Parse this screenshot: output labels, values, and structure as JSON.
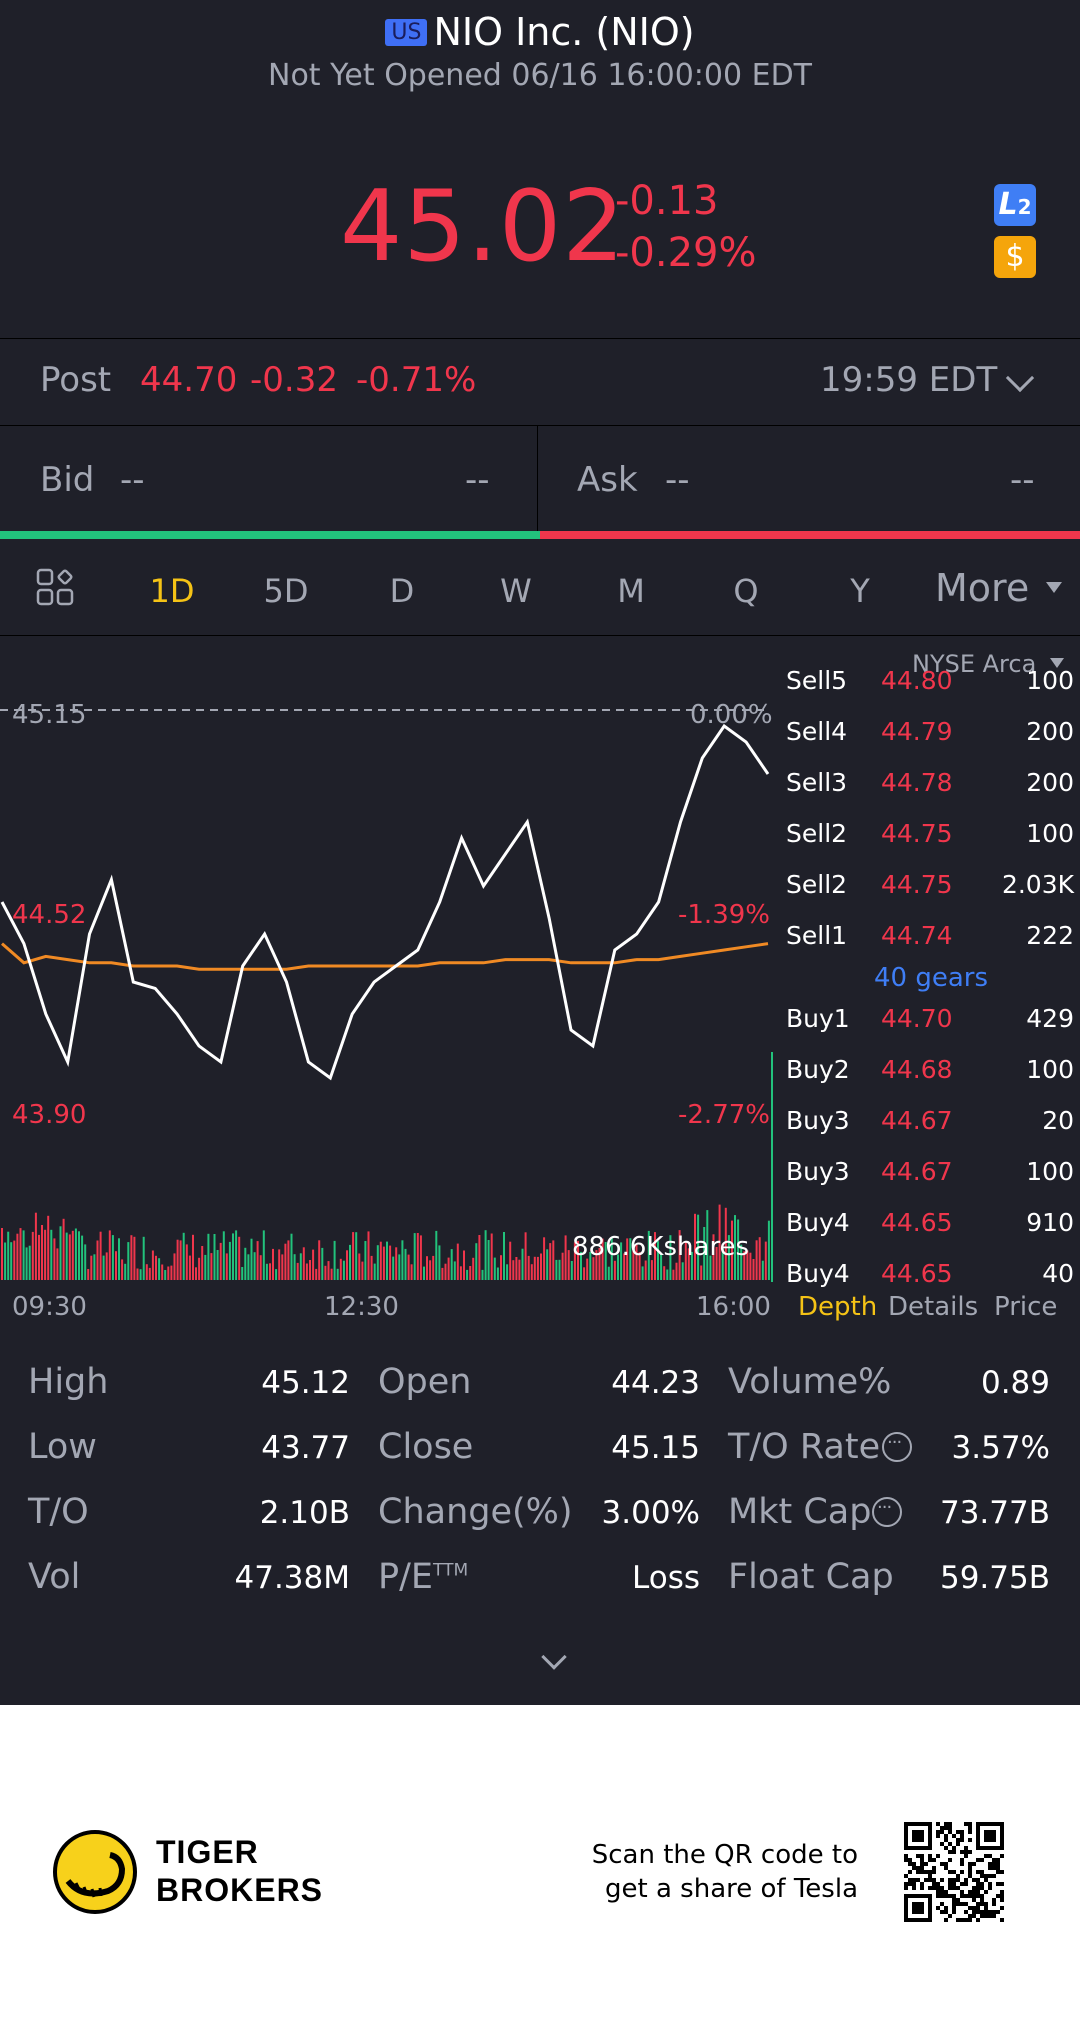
{
  "header": {
    "market_badge": "US",
    "title": "NIO Inc. (NIO)",
    "status": "Not Yet Opened 06/16 16:00:00 EDT",
    "price": "45.02",
    "change": "-0.13",
    "change_pct": "-0.29%",
    "l2_badge": "L2",
    "dollar_badge": "$"
  },
  "post": {
    "label": "Post",
    "price": "44.70",
    "change": "-0.32",
    "change_pct": "-0.71%",
    "time": "19:59 EDT"
  },
  "quote": {
    "bid_label": "Bid",
    "bid_value": "--",
    "bid_size": "--",
    "ask_label": "Ask",
    "ask_value": "--",
    "ask_size": "--"
  },
  "tabs": [
    "1D",
    "5D",
    "D",
    "W",
    "M",
    "Q",
    "Y"
  ],
  "active_tab": "1D",
  "more_label": "More",
  "chart": {
    "exchange": "NYSE Arca",
    "prev_close_label": "45.15",
    "prev_close_pct": "0.00%",
    "mid_price_label": "44.52",
    "mid_pct_label": "-1.39%",
    "low_price_label": "43.90",
    "low_pct_label": "-2.77%",
    "volume_label": "886.6Kshares",
    "time_labels": [
      "09:30",
      "12:30",
      "16:00"
    ],
    "colors": {
      "price_line": "#ffffff",
      "avg_line": "#f08a24",
      "up": "#22c27c",
      "down": "#f0364c"
    }
  },
  "chart_data": {
    "type": "line",
    "title": "",
    "xlabel": "",
    "ylabel": "",
    "x_ticks": [
      "09:30",
      "12:30",
      "16:00"
    ],
    "ylim": [
      43.9,
      45.15
    ],
    "y_ticks": [
      "45.15",
      "44.52",
      "43.90"
    ],
    "y_pct_ticks": [
      "0.00%",
      "-1.39%",
      "-2.77%"
    ],
    "series": [
      {
        "values": [
          44.55,
          44.42,
          44.2,
          44.05,
          44.45,
          44.62,
          44.3,
          44.28,
          44.2,
          44.1,
          44.05,
          44.35,
          44.45,
          44.3,
          44.05,
          44.0,
          44.2,
          44.3,
          44.35,
          44.4,
          44.55,
          44.75,
          44.6,
          44.7,
          44.8,
          44.5,
          44.15,
          44.1,
          44.4,
          44.45,
          44.55,
          44.8,
          45.0,
          45.1,
          45.05,
          44.95
        ]
      },
      {
        "values": [
          44.42,
          44.36,
          44.38,
          44.37,
          44.36,
          44.36,
          44.35,
          44.35,
          44.35,
          44.34,
          44.34,
          44.34,
          44.34,
          44.34,
          44.35,
          44.35,
          44.35,
          44.35,
          44.35,
          44.35,
          44.36,
          44.36,
          44.36,
          44.37,
          44.37,
          44.37,
          44.36,
          44.36,
          44.36,
          44.37,
          44.37,
          44.38,
          44.39,
          44.4,
          44.41,
          44.42
        ]
      }
    ]
  },
  "order_book": {
    "rows": [
      {
        "side": "Sell5",
        "price": "44.80",
        "size": "100"
      },
      {
        "side": "Sell4",
        "price": "44.79",
        "size": "200"
      },
      {
        "side": "Sell3",
        "price": "44.78",
        "size": "200"
      },
      {
        "side": "Sell2",
        "price": "44.75",
        "size": "100"
      },
      {
        "side": "Sell2",
        "price": "44.75",
        "size": "2.03K"
      },
      {
        "side": "Sell1",
        "price": "44.74",
        "size": "222"
      }
    ],
    "gears": "40 gears",
    "buy_rows": [
      {
        "side": "Buy1",
        "price": "44.70",
        "size": "429"
      },
      {
        "side": "Buy2",
        "price": "44.68",
        "size": "100"
      },
      {
        "side": "Buy3",
        "price": "44.67",
        "size": "20"
      },
      {
        "side": "Buy3",
        "price": "44.67",
        "size": "100"
      },
      {
        "side": "Buy4",
        "price": "44.65",
        "size": "910"
      },
      {
        "side": "Buy4",
        "price": "44.65",
        "size": "40"
      }
    ],
    "tabs": [
      "Depth",
      "Details",
      "Price"
    ],
    "active_tab": "Depth"
  },
  "stats": {
    "high_label": "High",
    "high": "45.12",
    "low_label": "Low",
    "low": "43.77",
    "to_label": "T/O",
    "to": "2.10B",
    "vol_label": "Vol",
    "vol": "47.38M",
    "open_label": "Open",
    "open": "44.23",
    "close_label": "Close",
    "close": "45.15",
    "change_label": "Change(%)",
    "change": "3.00%",
    "pe_label": "P/E",
    "pe_sup": "TTM",
    "pe": "Loss",
    "volpct_label": "Volume%",
    "volpct": "0.89",
    "torate_label": "T/O Rate",
    "torate": "3.57%",
    "mktcap_label": "Mkt Cap",
    "mktcap": "73.77B",
    "floatcap_label": "Float Cap",
    "floatcap": "59.75B"
  },
  "footer": {
    "brand_line1": "TIGER",
    "brand_line2": "BROKERS",
    "scan_line1": "Scan the QR code to",
    "scan_line2": "get a share of Tesla"
  }
}
